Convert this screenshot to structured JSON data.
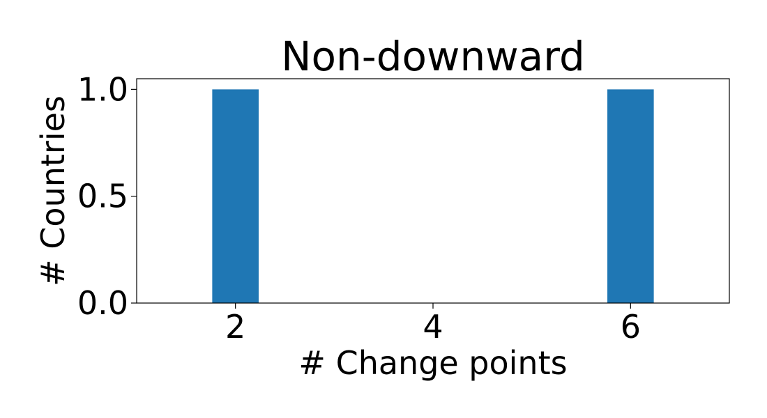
{
  "chart_data": {
    "type": "bar",
    "title": "Non-downward",
    "xlabel": "# Change points",
    "ylabel": "# Countries",
    "x": [
      2,
      6
    ],
    "values": [
      1.0,
      1.0
    ],
    "bar_width": 0.47,
    "xlim": [
      1.0,
      7.0
    ],
    "ylim": [
      0.0,
      1.05
    ],
    "xticks": [
      2,
      4,
      6
    ],
    "xtick_labels": [
      "2",
      "4",
      "6"
    ],
    "yticks": [
      0.0,
      0.5,
      1.0
    ],
    "ytick_labels": [
      "0.0",
      "0.5",
      "1.0"
    ],
    "bar_color": "#1f77b4",
    "grid": false,
    "legend": false
  }
}
